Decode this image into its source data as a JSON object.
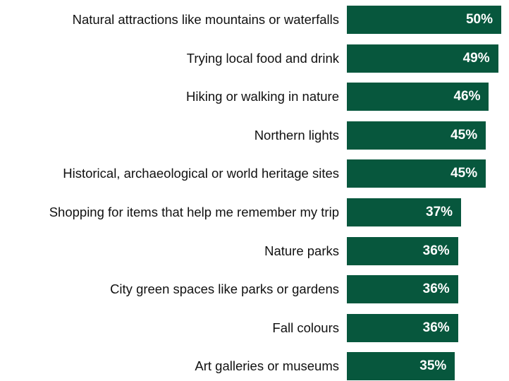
{
  "chart_data": {
    "type": "bar",
    "orientation": "horizontal",
    "categories": [
      "Natural attractions like mountains or waterfalls",
      "Trying local food and drink",
      "Hiking or walking in nature",
      "Northern lights",
      "Historical, archaeological or world heritage sites",
      "Shopping for items that help me remember my trip",
      "Nature parks",
      "City green spaces like parks or gardens",
      "Fall colours",
      "Art galleries or museums"
    ],
    "values": [
      50,
      49,
      46,
      45,
      45,
      37,
      36,
      36,
      36,
      35
    ],
    "value_labels": [
      "50%",
      "49%",
      "46%",
      "45%",
      "45%",
      "37%",
      "36%",
      "36%",
      "36%",
      "35%"
    ],
    "unit": "%",
    "xlim": [
      0,
      50
    ],
    "grid": false,
    "legend": "none",
    "colors": {
      "bar": "#07573d",
      "value_text": "#ffffff",
      "category_text": "#111111"
    }
  }
}
